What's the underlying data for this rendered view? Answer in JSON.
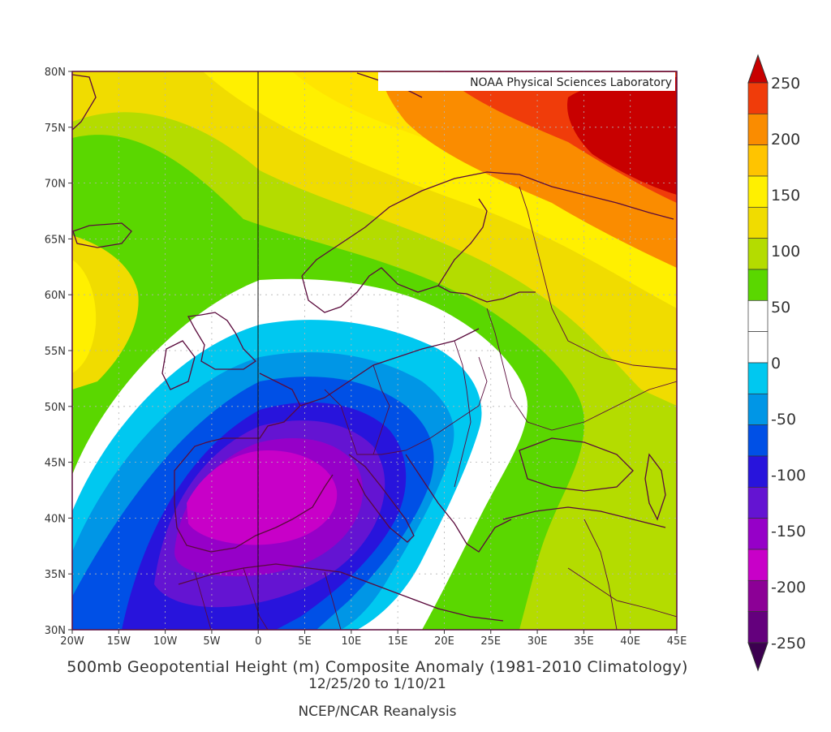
{
  "credit": "NOAA Physical Sciences Laboratory",
  "title": "500mb Geopotential Height (m) Composite Anomaly (1981-2010 Climatology)",
  "dates": "12/25/20  to 1/10/21",
  "source": "NCEP/NCAR Reanalysis",
  "lat_labels": [
    "80N",
    "75N",
    "70N",
    "65N",
    "60N",
    "55N",
    "50N",
    "45N",
    "40N",
    "35N",
    "30N"
  ],
  "lon_labels": [
    "20W",
    "15W",
    "10W",
    "5W",
    "0",
    "5E",
    "10E",
    "15E",
    "20E",
    "25E",
    "30E",
    "35E",
    "40E",
    "45E"
  ],
  "colorbar": {
    "labels": [
      "250",
      "200",
      "150",
      "100",
      "50",
      "0",
      "-50",
      "-100",
      "-150",
      "-200",
      "-250"
    ],
    "colors": [
      "#c80000",
      "#f03c0a",
      "#fa8c00",
      "#ffc400",
      "#fff000",
      "#f0dc00",
      "#b4dc00",
      "#5ad700",
      "#ffffff",
      "#ffffff",
      "#00c8f0",
      "#0096e6",
      "#0050e6",
      "#2814dc",
      "#6414d2",
      "#9600c8",
      "#c800c8",
      "#8c0096",
      "#64007d",
      "#3c0050"
    ]
  },
  "colors": {
    "land_border": "#5a0a3c",
    "frame": "#5a0a3c",
    "grid": "#b4b4b4"
  }
}
